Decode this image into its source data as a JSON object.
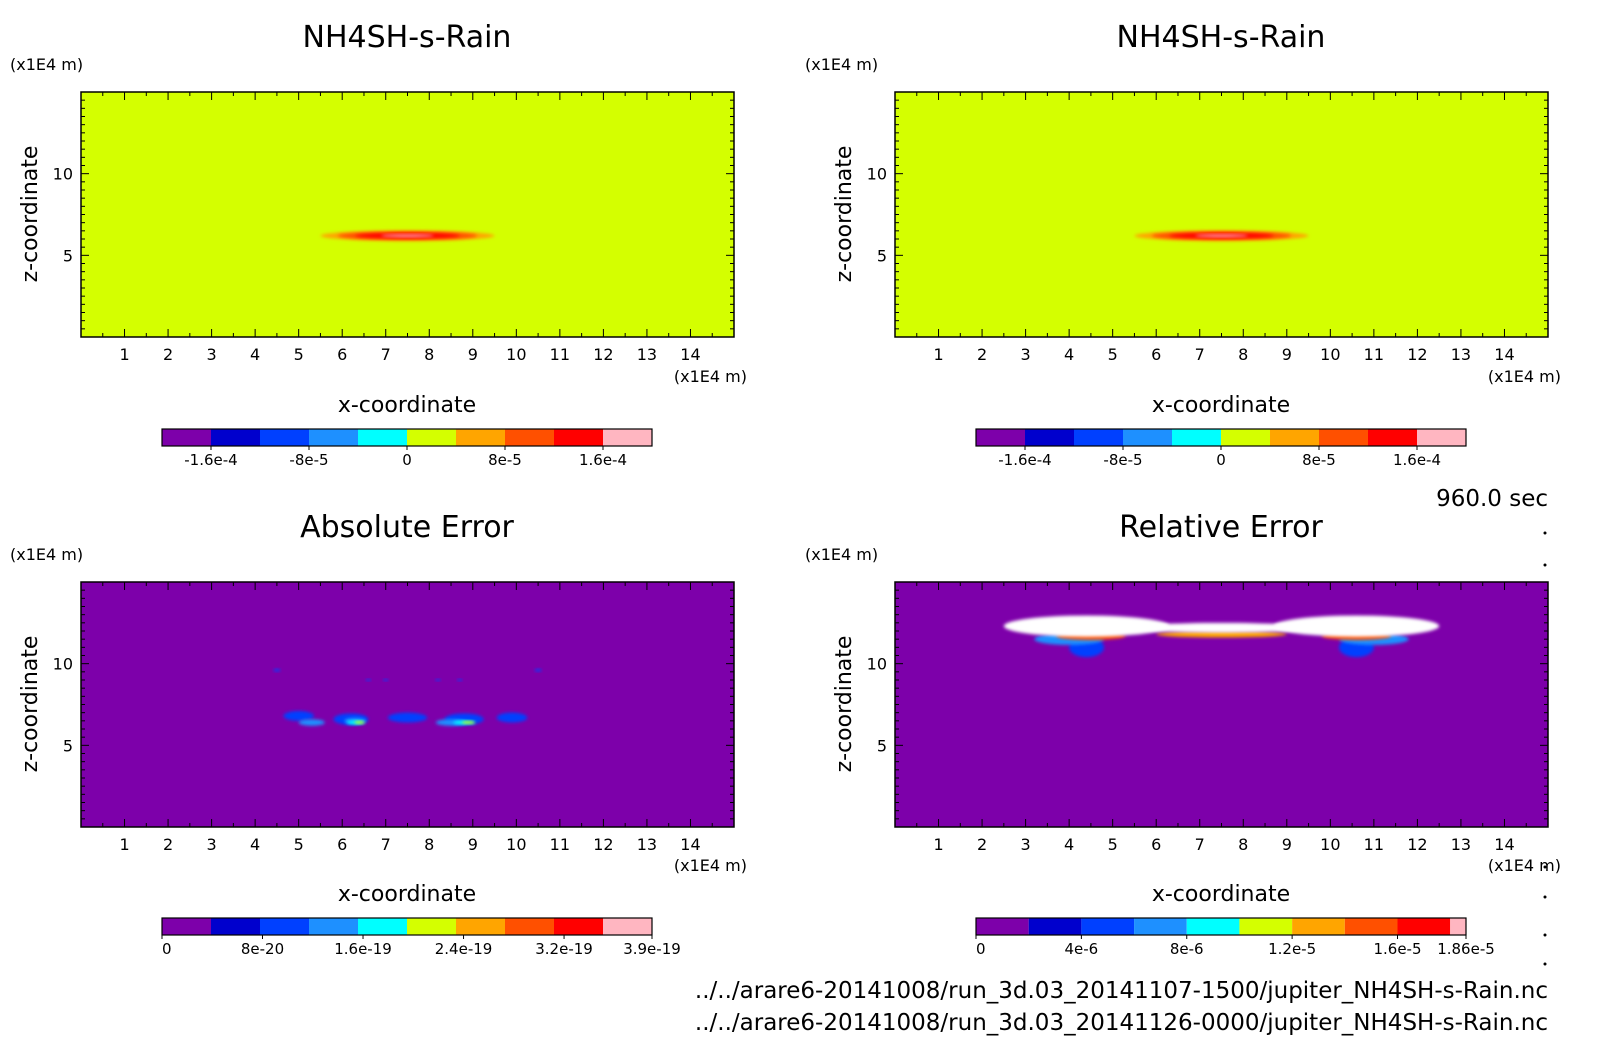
{
  "time_label": "960.0 sec",
  "files": [
    "../../arare6-20141008/run_3d.03_20141107-1500/jupiter_NH4SH-s-Rain.nc",
    "../../arare6-20141008/run_3d.03_20141126-0000/jupiter_NH4SH-s-Rain.nc"
  ],
  "chart_data": [
    {
      "type": "heatmap",
      "title": "NH4SH-s-Rain",
      "xlabel": "x-coordinate",
      "ylabel": "z-coordinate",
      "x_unit": "(x1E4 m)",
      "y_unit": "(x1E4 m)",
      "xlim": [
        0,
        15
      ],
      "ylim": [
        0,
        15
      ],
      "x_ticks": [
        1,
        2,
        3,
        4,
        5,
        6,
        7,
        8,
        9,
        10,
        11,
        12,
        13,
        14
      ],
      "y_ticks": [
        5,
        10
      ],
      "background_color": "#d4ff00",
      "colorbar": {
        "colors": [
          "#7d00aa",
          "#0000cd",
          "#0040ff",
          "#1e90ff",
          "#00ffff",
          "#d4ff00",
          "#ffa500",
          "#ff5000",
          "#ff0000",
          "#ffb6c1"
        ],
        "bounds": [
          -0.0002,
          -0.00016,
          -0.00012,
          -8e-05,
          -4e-05,
          0,
          4e-05,
          8e-05,
          0.00012,
          0.00016,
          0.0002
        ],
        "labels": [
          {
            "text": "-1.6e-4",
            "value": -0.00016
          },
          {
            "text": "-8e-5",
            "value": -8e-05
          },
          {
            "text": "0",
            "value": 0
          },
          {
            "text": "8e-5",
            "value": 8e-05
          },
          {
            "text": "1.6e-4",
            "value": 0.00016
          }
        ]
      },
      "features": [
        {
          "x": 7.5,
          "z": 6.2,
          "rx": 2.0,
          "rz": 0.32,
          "color": "#ffa500"
        },
        {
          "x": 7.5,
          "z": 6.2,
          "rx": 1.6,
          "rz": 0.25,
          "color": "#ff5000"
        },
        {
          "x": 7.5,
          "z": 6.2,
          "rx": 1.2,
          "rz": 0.16,
          "color": "#ff0000"
        },
        {
          "x": 7.5,
          "z": 6.2,
          "rx": 0.6,
          "rz": 0.07,
          "color": "#ffb6c1"
        }
      ]
    },
    {
      "type": "heatmap",
      "title": "NH4SH-s-Rain",
      "xlabel": "x-coordinate",
      "ylabel": "z-coordinate",
      "x_unit": "(x1E4 m)",
      "y_unit": "(x1E4 m)",
      "xlim": [
        0,
        15
      ],
      "ylim": [
        0,
        15
      ],
      "x_ticks": [
        1,
        2,
        3,
        4,
        5,
        6,
        7,
        8,
        9,
        10,
        11,
        12,
        13,
        14
      ],
      "y_ticks": [
        5,
        10
      ],
      "background_color": "#d4ff00",
      "colorbar": {
        "colors": [
          "#7d00aa",
          "#0000cd",
          "#0040ff",
          "#1e90ff",
          "#00ffff",
          "#d4ff00",
          "#ffa500",
          "#ff5000",
          "#ff0000",
          "#ffb6c1"
        ],
        "bounds": [
          -0.0002,
          -0.00016,
          -0.00012,
          -8e-05,
          -4e-05,
          0,
          4e-05,
          8e-05,
          0.00012,
          0.00016,
          0.0002
        ],
        "labels": [
          {
            "text": "-1.6e-4",
            "value": -0.00016
          },
          {
            "text": "-8e-5",
            "value": -8e-05
          },
          {
            "text": "0",
            "value": 0
          },
          {
            "text": "8e-5",
            "value": 8e-05
          },
          {
            "text": "1.6e-4",
            "value": 0.00016
          }
        ]
      },
      "features": [
        {
          "x": 7.5,
          "z": 6.2,
          "rx": 2.0,
          "rz": 0.32,
          "color": "#ffa500"
        },
        {
          "x": 7.5,
          "z": 6.2,
          "rx": 1.6,
          "rz": 0.25,
          "color": "#ff5000"
        },
        {
          "x": 7.5,
          "z": 6.2,
          "rx": 1.2,
          "rz": 0.16,
          "color": "#ff0000"
        },
        {
          "x": 7.5,
          "z": 6.2,
          "rx": 0.6,
          "rz": 0.07,
          "color": "#ffb6c1"
        }
      ]
    },
    {
      "type": "heatmap",
      "title": "Absolute Error",
      "xlabel": "x-coordinate",
      "ylabel": "z-coordinate",
      "x_unit": "(x1E4 m)",
      "y_unit": "(x1E4 m)",
      "xlim": [
        0,
        15
      ],
      "ylim": [
        0,
        15
      ],
      "x_ticks": [
        1,
        2,
        3,
        4,
        5,
        6,
        7,
        8,
        9,
        10,
        11,
        12,
        13,
        14
      ],
      "y_ticks": [
        5,
        10
      ],
      "background_color": "#7d00aa",
      "colorbar": {
        "colors": [
          "#7d00aa",
          "#0000cd",
          "#0040ff",
          "#1e90ff",
          "#00ffff",
          "#d4ff00",
          "#ffa500",
          "#ff5000",
          "#ff0000",
          "#ffb6c1"
        ],
        "bounds": [
          0,
          3.9e-20,
          7.8e-20,
          1.17e-19,
          1.56e-19,
          1.95e-19,
          2.34e-19,
          2.73e-19,
          3.12e-19,
          3.51e-19,
          3.9e-19
        ],
        "labels": [
          {
            "text": "0",
            "value": 0
          },
          {
            "text": "8e-20",
            "value": 8e-20
          },
          {
            "text": "1.6e-19",
            "value": 1.6e-19
          },
          {
            "text": "2.4e-19",
            "value": 2.4e-19
          },
          {
            "text": "3.2e-19",
            "value": 3.2e-19
          },
          {
            "text": "3.9e-19",
            "value": 3.9e-19
          }
        ]
      },
      "features": [
        {
          "x": 5.0,
          "z": 6.8,
          "rx": 0.35,
          "rz": 0.3,
          "color": "#0040ff"
        },
        {
          "x": 6.2,
          "z": 6.6,
          "rx": 0.4,
          "rz": 0.35,
          "color": "#0040ff"
        },
        {
          "x": 7.5,
          "z": 6.7,
          "rx": 0.45,
          "rz": 0.3,
          "color": "#0040ff"
        },
        {
          "x": 8.8,
          "z": 6.6,
          "rx": 0.45,
          "rz": 0.35,
          "color": "#0040ff"
        },
        {
          "x": 9.9,
          "z": 6.7,
          "rx": 0.35,
          "rz": 0.3,
          "color": "#0040ff"
        },
        {
          "x": 5.3,
          "z": 6.4,
          "rx": 0.3,
          "rz": 0.2,
          "color": "#1e90ff"
        },
        {
          "x": 6.3,
          "z": 6.5,
          "rx": 0.25,
          "rz": 0.18,
          "color": "#1e90ff"
        },
        {
          "x": 8.5,
          "z": 6.4,
          "rx": 0.35,
          "rz": 0.2,
          "color": "#1e90ff"
        },
        {
          "x": 6.3,
          "z": 6.4,
          "rx": 0.2,
          "rz": 0.12,
          "color": "#00ffff"
        },
        {
          "x": 8.8,
          "z": 6.4,
          "rx": 0.25,
          "rz": 0.12,
          "color": "#00ffff"
        },
        {
          "x": 6.4,
          "z": 6.4,
          "rx": 0.12,
          "rz": 0.08,
          "color": "#d4ff00"
        },
        {
          "x": 8.9,
          "z": 6.4,
          "rx": 0.15,
          "rz": 0.08,
          "color": "#d4ff00"
        },
        {
          "x": 4.5,
          "z": 9.6,
          "rx": 0.08,
          "rz": 0.08,
          "color": "#0040ff"
        },
        {
          "x": 6.6,
          "z": 9.0,
          "rx": 0.06,
          "rz": 0.06,
          "color": "#0040ff"
        },
        {
          "x": 7.0,
          "z": 9.0,
          "rx": 0.06,
          "rz": 0.06,
          "color": "#0040ff"
        },
        {
          "x": 8.2,
          "z": 9.0,
          "rx": 0.06,
          "rz": 0.06,
          "color": "#0040ff"
        },
        {
          "x": 8.7,
          "z": 9.0,
          "rx": 0.06,
          "rz": 0.06,
          "color": "#0040ff"
        },
        {
          "x": 10.5,
          "z": 9.6,
          "rx": 0.08,
          "rz": 0.08,
          "color": "#0040ff"
        }
      ]
    },
    {
      "type": "heatmap",
      "title": "Relative Error",
      "xlabel": "x-coordinate",
      "ylabel": "z-coordinate",
      "x_unit": "(x1E4 m)",
      "y_unit": "(x1E4 m)",
      "xlim": [
        0,
        15
      ],
      "ylim": [
        0,
        15
      ],
      "x_ticks": [
        1,
        2,
        3,
        4,
        5,
        6,
        7,
        8,
        9,
        10,
        11,
        12,
        13,
        14
      ],
      "y_ticks": [
        5,
        10
      ],
      "background_color": "#7d00aa",
      "colorbar": {
        "colors": [
          "#7d00aa",
          "#0000cd",
          "#0040ff",
          "#1e90ff",
          "#00ffff",
          "#d4ff00",
          "#ffa500",
          "#ff5000",
          "#ff0000",
          "#ffb6c1"
        ],
        "bounds": [
          0,
          2e-06,
          4e-06,
          6e-06,
          8e-06,
          1e-05,
          1.2e-05,
          1.4e-05,
          1.6e-05,
          1.8e-05,
          1.86e-05
        ],
        "labels": [
          {
            "text": "0",
            "value": 0
          },
          {
            "text": "4e-6",
            "value": 4e-06
          },
          {
            "text": "8e-6",
            "value": 8e-06
          },
          {
            "text": "1.2e-5",
            "value": 1.2e-05
          },
          {
            "text": "1.6e-5",
            "value": 1.6e-05
          },
          {
            "text": "1.86e-5",
            "value": 1.86e-05
          }
        ]
      },
      "features": [
        {
          "x": 4.4,
          "z": 11.0,
          "rx": 0.4,
          "rz": 0.6,
          "color": "#0040ff"
        },
        {
          "x": 10.6,
          "z": 11.0,
          "rx": 0.4,
          "rz": 0.6,
          "color": "#0040ff"
        },
        {
          "x": 4.0,
          "z": 11.5,
          "rx": 0.8,
          "rz": 0.35,
          "color": "#1e90ff"
        },
        {
          "x": 11.0,
          "z": 11.5,
          "rx": 0.8,
          "rz": 0.35,
          "color": "#1e90ff"
        },
        {
          "x": 4.5,
          "z": 11.7,
          "rx": 0.8,
          "rz": 0.25,
          "color": "#ff5000"
        },
        {
          "x": 10.6,
          "z": 11.7,
          "rx": 0.8,
          "rz": 0.25,
          "color": "#ff5000"
        },
        {
          "x": 7.5,
          "z": 11.8,
          "rx": 1.5,
          "rz": 0.2,
          "color": "#ffa500"
        },
        {
          "x": 4.4,
          "z": 12.3,
          "rx": 1.9,
          "rz": 0.65,
          "color": "#ffffff"
        },
        {
          "x": 7.5,
          "z": 12.2,
          "rx": 2.0,
          "rz": 0.3,
          "color": "#ffffff"
        },
        {
          "x": 10.6,
          "z": 12.3,
          "rx": 1.9,
          "rz": 0.65,
          "color": "#ffffff"
        }
      ]
    }
  ]
}
